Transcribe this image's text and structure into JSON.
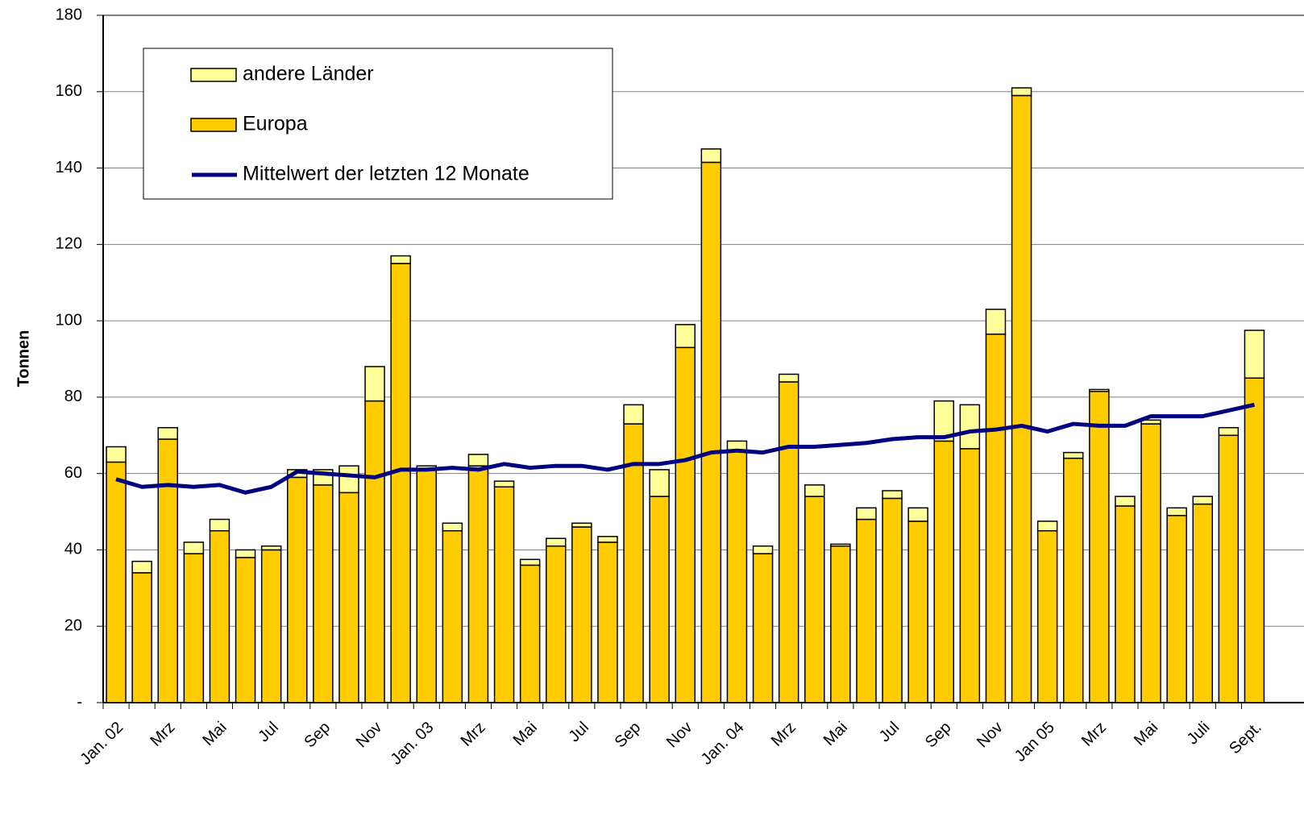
{
  "chart_data": {
    "type": "bar",
    "stacked": true,
    "ylabel": "Tonnen",
    "categories": [
      "Jan. 02",
      null,
      "Mrz",
      null,
      "Mai",
      null,
      "Jul",
      null,
      "Sep",
      null,
      "Nov",
      null,
      "Jan. 03",
      null,
      "Mrz",
      null,
      "Mai",
      null,
      "Jul",
      null,
      "Sep",
      null,
      "Nov",
      null,
      "Jan. 04",
      null,
      "Mrz",
      null,
      "Mai",
      null,
      "Jul",
      null,
      "Sep",
      null,
      "Nov",
      null,
      "Jan 05",
      null,
      "Mrz",
      null,
      "Mai",
      null,
      "Juli",
      null,
      "Sept."
    ],
    "series": [
      {
        "name": "Europa",
        "type": "bar",
        "color": "#FFCC00",
        "values": [
          63,
          34,
          69,
          39,
          45,
          38,
          40,
          59,
          57,
          55,
          79,
          115,
          61,
          45,
          62,
          56.5,
          36,
          41,
          46,
          42,
          73,
          54,
          93,
          141.5,
          66,
          39,
          84,
          54,
          41,
          48,
          53.5,
          47.5,
          68.5,
          66.5,
          96.5,
          159,
          45,
          64,
          81.5,
          51.5,
          73,
          49,
          52,
          70,
          85
        ]
      },
      {
        "name": "andere Länder",
        "type": "bar",
        "color": "#FFFF99",
        "values": [
          4,
          3,
          3,
          3,
          3,
          2,
          1,
          2,
          4,
          7,
          9,
          2,
          1,
          2,
          3,
          1.5,
          1.5,
          2,
          1,
          1.5,
          5,
          7,
          6,
          3.5,
          2.5,
          2,
          2,
          3,
          0.5,
          3,
          2,
          3.5,
          10.5,
          11.5,
          6.5,
          2,
          2.5,
          1.5,
          0.5,
          2.5,
          1,
          2,
          2,
          2,
          12.5
        ]
      },
      {
        "name": "Mittelwert der letzten 12 Monate",
        "type": "line",
        "color": "#000080",
        "values": [
          58.5,
          56.5,
          57,
          56.5,
          57,
          55,
          56.5,
          60.5,
          60,
          59.5,
          59,
          61,
          61,
          61.5,
          61,
          62.5,
          61.5,
          62,
          62,
          61,
          62.5,
          62.5,
          63.5,
          65.5,
          66,
          65.5,
          67,
          67,
          67.5,
          68,
          69,
          69.5,
          69.5,
          71,
          71.5,
          72.5,
          71,
          73,
          72.5,
          72.5,
          75,
          75,
          75,
          76.5,
          78
        ]
      }
    ],
    "ylim": [
      0,
      180
    ],
    "yticks": [
      {
        "value": 0,
        "label": "-"
      },
      20,
      40,
      60,
      80,
      100,
      120,
      140,
      160,
      180
    ],
    "grid": true,
    "legend": "upper left"
  }
}
